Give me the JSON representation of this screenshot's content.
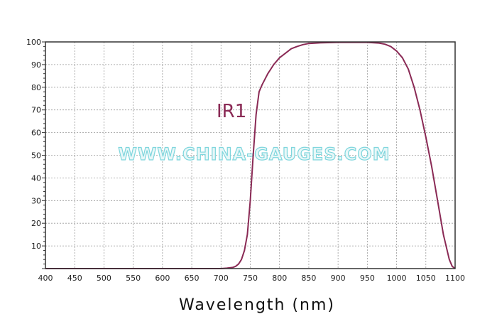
{
  "chart_data": {
    "type": "line",
    "xlabel": "Wavelength (nm)",
    "ylabel": "",
    "xlim": [
      400,
      1100
    ],
    "ylim": [
      0,
      100
    ],
    "x_ticks": [
      400,
      450,
      500,
      550,
      600,
      650,
      700,
      750,
      800,
      850,
      900,
      950,
      1000,
      1050,
      1100
    ],
    "y_ticks": [
      10,
      20,
      30,
      40,
      50,
      60,
      70,
      80,
      90,
      100
    ],
    "grid": true,
    "line_color": "#8a2a55",
    "series": [
      {
        "name": "IR1",
        "x": [
          400,
          500,
          600,
          700,
          710,
          720,
          725,
          730,
          735,
          740,
          745,
          750,
          755,
          760,
          765,
          770,
          780,
          790,
          800,
          810,
          820,
          830,
          840,
          850,
          870,
          900,
          950,
          970,
          980,
          990,
          1000,
          1010,
          1020,
          1030,
          1040,
          1050,
          1060,
          1070,
          1080,
          1090,
          1095,
          1100
        ],
        "y": [
          0,
          0,
          0,
          0,
          0.2,
          0.5,
          1,
          2,
          4,
          8,
          15,
          30,
          50,
          68,
          78,
          81,
          86,
          90,
          93,
          95,
          97,
          98,
          98.8,
          99.3,
          99.6,
          99.8,
          99.8,
          99.5,
          99,
          98,
          96,
          93,
          88,
          80,
          70,
          58,
          45,
          30,
          15,
          4,
          1,
          0
        ]
      }
    ],
    "series_label": "IR1",
    "watermark": "WWW.CHINA-GAUGES.COM"
  }
}
